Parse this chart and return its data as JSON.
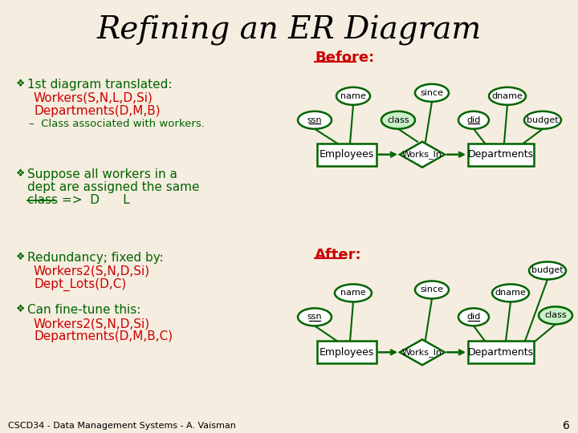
{
  "title": "Refining an ER Diagram",
  "bg_color": "#f5ede0",
  "title_color": "#000000",
  "title_fontsize": 28,
  "green_color": "#006400",
  "red_color": "#cc0000",
  "footer": "CSCD34 - Data Management Systems - A. Vaisman",
  "page_num": "6"
}
